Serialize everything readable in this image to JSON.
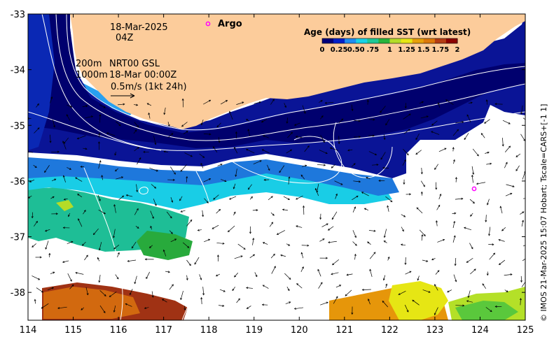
{
  "annotations": {
    "date": "18-Mar-2025",
    "time": "04Z",
    "contour_200": "200m",
    "contour_1000": "1000m",
    "product": "NRT00 GSL",
    "product_time": "18-Mar 00:00Z",
    "velocity_scale": "0.5m/s (1kt 24h)",
    "argo_label": "Argo"
  },
  "colorbar": {
    "title": "Age (days) of filled SST (wrt latest)",
    "tick_labels": [
      "0",
      "0.25",
      "0.50",
      ".75",
      "1",
      "1.25",
      "1.5",
      "1.75",
      "2"
    ],
    "colors": [
      "#00007a",
      "#0020c8",
      "#1f8cf0",
      "#19d2e6",
      "#1ec896",
      "#28b43c",
      "#b4dc28",
      "#e6e614",
      "#e6a00a",
      "#dc780a",
      "#b43c14",
      "#8b0000"
    ]
  },
  "credit": "© IMOS 21-Mar-2025 15:07 Hobart; Tscale=CARS+[-1 1]",
  "chart_data": {
    "type": "heatmap",
    "title": "Age (days) of filled SST (wrt latest)",
    "xlabel": "",
    "ylabel": "",
    "xlim": [
      114,
      125
    ],
    "ylim": [
      -38.5,
      -33
    ],
    "x_ticks": [
      "114",
      "115",
      "116",
      "117",
      "118",
      "119",
      "120",
      "121",
      "122",
      "123",
      "124",
      "125"
    ],
    "y_ticks": [
      "-33",
      "-34",
      "-35",
      "-36",
      "-37",
      "-38"
    ],
    "colorbar_range": [
      0,
      2
    ],
    "regions": [
      {
        "name": "",
        "age_days": 0.05
      },
      {
        "name": "",
        "age_days": 0.3
      },
      {
        "name": "",
        "age_days": 0.55
      },
      {
        "name": "",
        "age_days": 0.8
      },
      {
        "name": "",
        "age_days": 1.55
      },
      {
        "name": "",
        "age_days": 1.9
      }
    ],
    "argo_floats": [
      {
        "lon": 118.0,
        "lat": -33.17
      },
      {
        "lon": 123.85,
        "lat": -36.13
      }
    ]
  },
  "colors": {
    "land": "#fccc9b",
    "no_data": "#ffffff",
    "argo_marker": "#ff00ff",
    "contour": "#ffffff",
    "vector": "#000000"
  }
}
